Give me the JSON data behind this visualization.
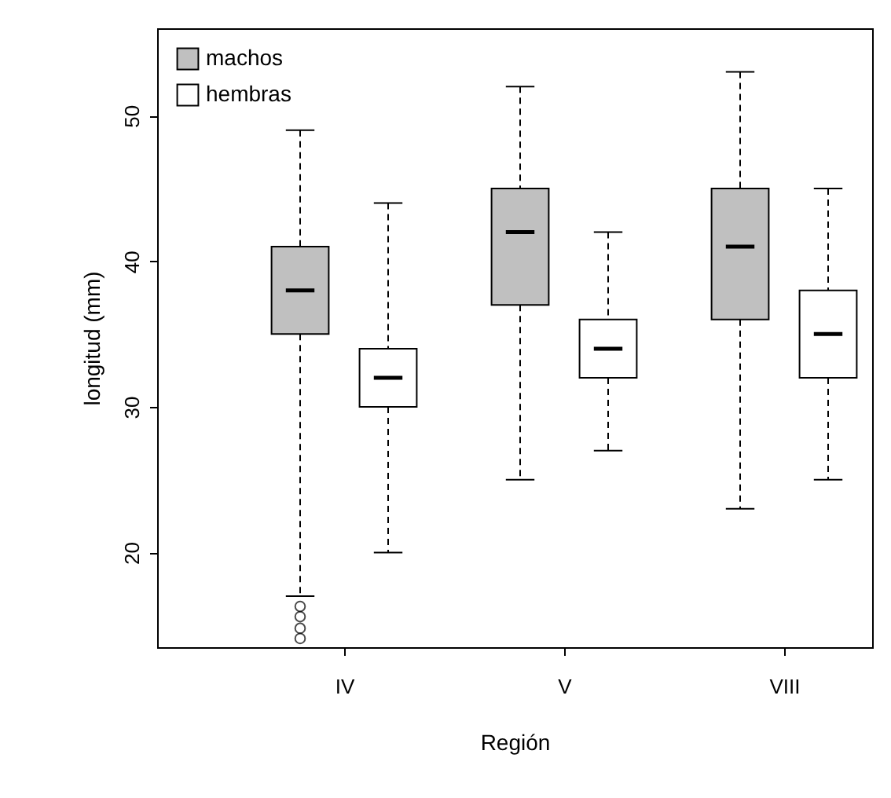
{
  "chart_data": {
    "type": "box",
    "xlabel": "Región",
    "ylabel": "longitud (mm)",
    "ylim": [
      13.5,
      56
    ],
    "yticks": [
      20,
      30,
      40,
      50
    ],
    "legend": "top left",
    "categories": [
      "IV",
      "V",
      "VIII"
    ],
    "series": [
      {
        "name": "machos",
        "color": "#c0c0c0",
        "boxes": [
          {
            "low": 17,
            "q1": 35,
            "median": 38,
            "q3": 41,
            "high": 49,
            "outliers": [
              16.3,
              15.6,
              14.8,
              14.1
            ]
          },
          {
            "low": 25,
            "q1": 37,
            "median": 42,
            "q3": 45,
            "high": 52
          },
          {
            "low": 23,
            "q1": 36,
            "median": 41,
            "q3": 45,
            "high": 53
          }
        ]
      },
      {
        "name": "hembras",
        "color": "#ffffff",
        "boxes": [
          {
            "low": 20,
            "q1": 30,
            "median": 32,
            "q3": 34,
            "high": 44
          },
          {
            "low": 27,
            "q1": 32,
            "median": 34,
            "q3": 36,
            "high": 42
          },
          {
            "low": 25,
            "q1": 32,
            "median": 35,
            "q3": 38,
            "high": 45
          }
        ]
      }
    ]
  }
}
